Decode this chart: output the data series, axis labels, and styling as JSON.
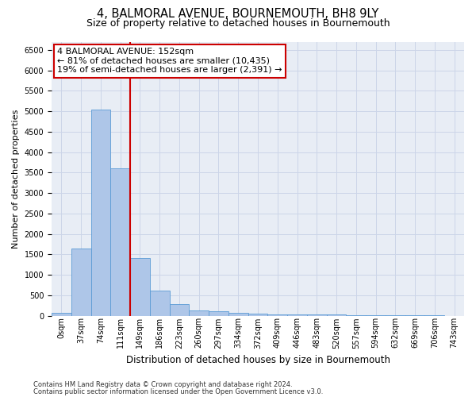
{
  "title": "4, BALMORAL AVENUE, BOURNEMOUTH, BH8 9LY",
  "subtitle": "Size of property relative to detached houses in Bournemouth",
  "xlabel": "Distribution of detached houses by size in Bournemouth",
  "ylabel": "Number of detached properties",
  "footnote1": "Contains HM Land Registry data © Crown copyright and database right 2024.",
  "footnote2": "Contains public sector information licensed under the Open Government Licence v3.0.",
  "bar_values": [
    75,
    1650,
    5050,
    3600,
    1420,
    620,
    290,
    140,
    110,
    80,
    55,
    40,
    35,
    30,
    25,
    20,
    15,
    12,
    10,
    8,
    5
  ],
  "x_labels": [
    "0sqm",
    "37sqm",
    "74sqm",
    "111sqm",
    "149sqm",
    "186sqm",
    "223sqm",
    "260sqm",
    "297sqm",
    "334sqm",
    "372sqm",
    "409sqm",
    "446sqm",
    "483sqm",
    "520sqm",
    "557sqm",
    "594sqm",
    "632sqm",
    "669sqm",
    "706sqm",
    "743sqm"
  ],
  "bar_color": "#aec6e8",
  "bar_edge_color": "#5b9bd5",
  "vline_color": "#cc0000",
  "vline_x": 4.0,
  "annotation_text": "4 BALMORAL AVENUE: 152sqm\n← 81% of detached houses are smaller (10,435)\n19% of semi-detached houses are larger (2,391) →",
  "ylim": [
    0,
    6700
  ],
  "ytick_max": 6500,
  "ytick_step": 500,
  "grid_color": "#ccd5e8",
  "bg_color": "#e8edf5",
  "title_fontsize": 10.5,
  "subtitle_fontsize": 9,
  "ylabel_fontsize": 8,
  "xlabel_fontsize": 8.5,
  "tick_fontsize": 7,
  "annot_fontsize": 8,
  "footnote_fontsize": 6
}
